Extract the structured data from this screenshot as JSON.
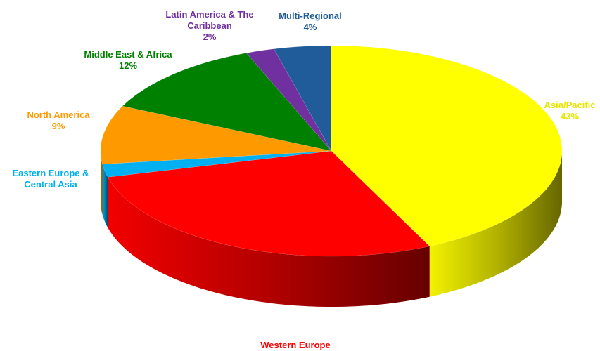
{
  "chart_data": {
    "type": "pie",
    "categories": [
      "Asia/Pacific",
      "Western Europe",
      "Eastern Europe & Central Asia",
      "North America",
      "Middle East & Africa",
      "Latin America & The Caribbean",
      "Multi-Regional"
    ],
    "values": [
      43,
      28,
      2,
      9,
      12,
      2,
      4
    ],
    "value_labels": [
      "43%",
      null,
      null,
      "9%",
      "12%",
      "2%",
      "4%"
    ],
    "colors": [
      "#ffff00",
      "#ff0000",
      "#00b0f0",
      "#ff9900",
      "#008000",
      "#7030a0",
      "#1f5c99"
    ]
  }
}
